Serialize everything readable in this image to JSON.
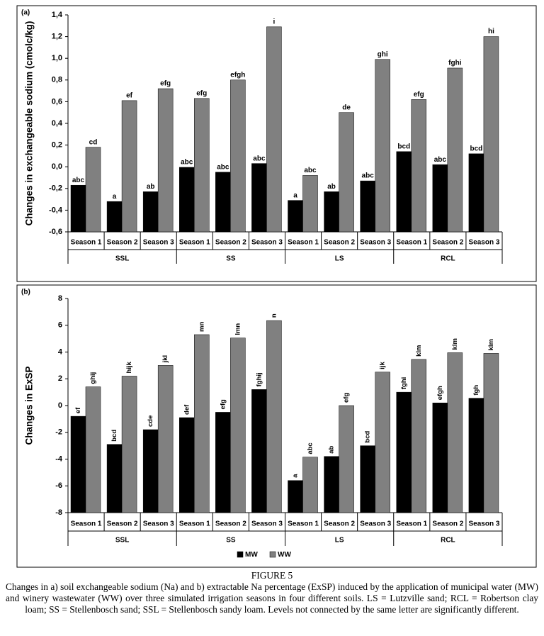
{
  "chart_data": [
    {
      "type": "bar",
      "title": "(a)",
      "y_label": "Changes in exchangeable sodium (cmolc/kg)",
      "categories": [
        "Season 1",
        "Season 2",
        "Season 3",
        "Season 1",
        "Season 2",
        "Season 3",
        "Season 1",
        "Season 2",
        "Season 3",
        "Season 1",
        "Season 2",
        "Season 3"
      ],
      "groups": [
        "SSL",
        "SS",
        "LS",
        "RCL"
      ],
      "series": [
        {
          "name": "MW",
          "color": "#000000",
          "values": [
            -0.17,
            -0.32,
            -0.23,
            -0.005,
            -0.05,
            0.03,
            -0.31,
            -0.23,
            -0.13,
            0.14,
            0.02,
            0.12
          ],
          "letters": [
            "abc",
            "a",
            "ab",
            "abc",
            "abc",
            "abc",
            "a",
            "ab",
            "abc",
            "bcd",
            "abc",
            "bcd"
          ]
        },
        {
          "name": "WW",
          "color": "#808080",
          "values": [
            0.18,
            0.61,
            0.72,
            0.63,
            0.8,
            1.29,
            -0.08,
            0.5,
            0.99,
            0.62,
            0.91,
            1.2
          ],
          "letters": [
            "cd",
            "ef",
            "efg",
            "efg",
            "efgh",
            "i",
            "abc",
            "de",
            "ghi",
            "efg",
            "fghi",
            "hi"
          ]
        }
      ],
      "ylim": [
        -0.6,
        1.4
      ],
      "yticks": [
        {
          "value": -0.6,
          "label": "-0,6"
        },
        {
          "value": -0.4,
          "label": "-0,4"
        },
        {
          "value": -0.2,
          "label": "-0,2"
        },
        {
          "value": 0,
          "label": "0,0"
        },
        {
          "value": 0.2,
          "label": "0,2"
        },
        {
          "value": 0.4,
          "label": "0,4"
        },
        {
          "value": 0.6,
          "label": "0,6"
        },
        {
          "value": 0.8,
          "label": "0,8"
        },
        {
          "value": 1.0,
          "label": "1,0"
        },
        {
          "value": 1.2,
          "label": "1,2"
        },
        {
          "value": 1.4,
          "label": "1,4"
        }
      ],
      "letters_rotated": false,
      "legend": false
    },
    {
      "type": "bar",
      "title": "(b)",
      "y_label": "Changes in ExSP",
      "categories": [
        "Season 1",
        "Season 2",
        "Season 3",
        "Season 1",
        "Season 2",
        "Season 3",
        "Season 1",
        "Season 2",
        "Season 3",
        "Season 1",
        "Season 2",
        "Season 3"
      ],
      "groups": [
        "SSL",
        "SS",
        "LS",
        "RCL"
      ],
      "series": [
        {
          "name": "MW",
          "color": "#000000",
          "values": [
            -0.8,
            -2.9,
            -1.8,
            -0.9,
            -0.5,
            1.2,
            -5.6,
            -3.8,
            -3.0,
            1.0,
            0.2,
            0.55
          ],
          "letters": [
            "ef",
            "bcd",
            "cde",
            "def",
            "efg",
            "fghij",
            "a",
            "ab",
            "bcd",
            "fghi",
            "efgh",
            "fgh"
          ]
        },
        {
          "name": "WW",
          "color": "#808080",
          "values": [
            1.4,
            2.2,
            3.0,
            5.3,
            5.05,
            6.35,
            -3.85,
            0.0,
            2.5,
            3.45,
            3.95,
            3.9
          ],
          "letters": [
            "ghij",
            "hijk",
            "jkl",
            "mn",
            "lmn",
            "n",
            "abc",
            "efg",
            "ijk",
            "klm",
            "klm",
            "klm"
          ]
        }
      ],
      "ylim": [
        -8,
        8
      ],
      "yticks": [
        -8,
        -6,
        -4,
        -2,
        0,
        2,
        4,
        6,
        8
      ],
      "letters_rotated": true,
      "legend": true
    }
  ],
  "caption": {
    "title": "FIGURE 5",
    "text": "Changes in a) soil exchangeable sodium (Na) and b) extractable Na percentage (ExSP) induced by the application of municipal water (MW) and winery wastewater (WW) over three simulated irrigation seasons in four different soils. LS = Lutzville sand; RCL = Robertson clay loam; SS = Stellenbosch sand; SSL = Stellenbosch sandy loam. Levels not connected by the same letter are significantly different."
  }
}
